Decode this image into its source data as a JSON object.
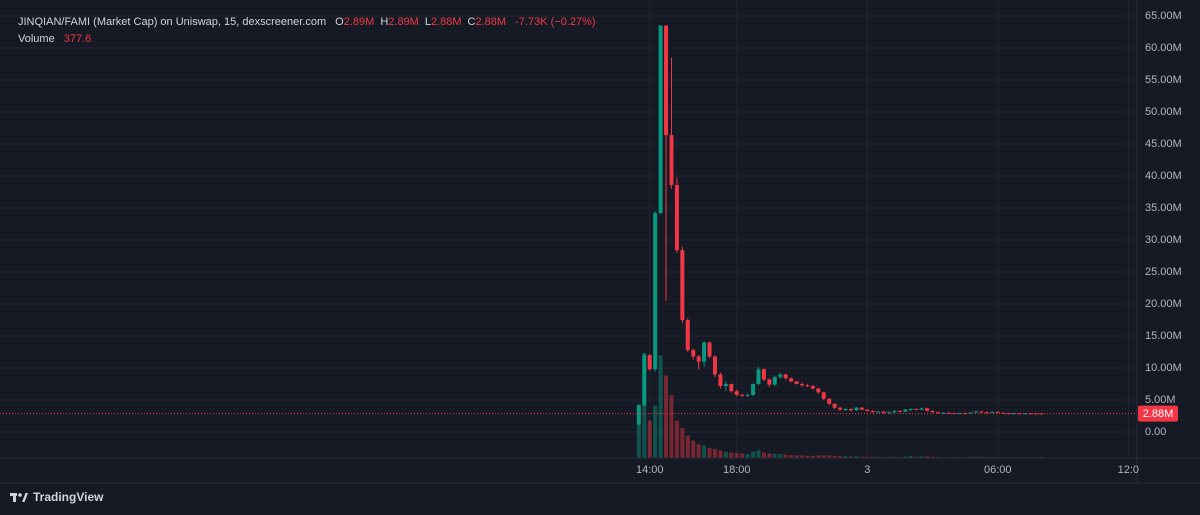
{
  "chart_data": {
    "type": "candlestick",
    "title": "JINQIAN/FAMI (Market Cap) on Uniswap, 15, dexscreener.com",
    "legend": [
      {
        "key": "O",
        "value": "2.89M"
      },
      {
        "key": "H",
        "value": "2.89M"
      },
      {
        "key": "L",
        "value": "2.88M"
      },
      {
        "key": "C",
        "value": "2.88M"
      }
    ],
    "change": "-7.73K (−0.27%)",
    "volume_label": "Volume",
    "last_label": "2.88M",
    "branding": "TradingView",
    "up_color": "#089981",
    "down_color": "#f23645",
    "grid": true,
    "x": [
      13.5,
      13.75,
      14,
      14.25,
      14.5,
      14.75,
      15,
      15.25,
      15.5,
      15.75,
      16,
      16.25,
      16.5,
      16.75,
      17,
      17.25,
      17.5,
      17.75,
      18,
      18.25,
      18.5,
      18.75,
      19,
      19.25,
      19.5,
      19.75,
      20,
      20.25,
      20.5,
      20.75,
      21,
      21.25,
      21.5,
      21.75,
      22,
      22.25,
      22.5,
      22.75,
      23,
      23.25,
      23.5,
      23.75,
      24,
      24.25,
      24.5,
      24.75,
      25,
      25.25,
      25.5,
      25.75,
      26,
      26.25,
      26.5,
      26.75,
      27,
      27.25,
      27.5,
      27.75,
      28,
      28.25,
      28.5,
      28.75,
      29,
      29.25,
      29.5,
      29.75,
      30,
      30.25,
      30.5,
      30.75,
      31,
      31.25,
      31.5,
      31.75,
      32
    ],
    "open": [
      1.2,
      4.2,
      12.0,
      9.8,
      34.2,
      63.5,
      46.4,
      38.6,
      28.4,
      17.5,
      12.8,
      11.8,
      11.0,
      14.0,
      11.8,
      9.0,
      7.2,
      7.5,
      6.4,
      5.8,
      5.7,
      5.8,
      7.5,
      9.8,
      8.2,
      7.4,
      8.6,
      9.0,
      8.4,
      7.9,
      7.5,
      7.3,
      7.2,
      6.8,
      6.2,
      5.2,
      4.4,
      3.8,
      3.5,
      3.6,
      3.4,
      3.8,
      3.5,
      3.3,
      3.1,
      3.2,
      3.0,
      3.1,
      3.3,
      3.2,
      3.5,
      3.6,
      3.5,
      3.7,
      3.3,
      3.1,
      3.0,
      3.0,
      2.95,
      2.9,
      2.95,
      2.9,
      3.05,
      3.2,
      3.1,
      3.0,
      3.15,
      3.0,
      2.95,
      2.92,
      2.93,
      2.9,
      2.91,
      2.9,
      2.89
    ],
    "high": [
      4.3,
      12.3,
      12.2,
      34.5,
      63.6,
      63.6,
      58.5,
      39.8,
      29.0,
      17.8,
      13.0,
      12.0,
      14.2,
      14.1,
      12.0,
      9.3,
      7.9,
      7.6,
      6.6,
      6.0,
      6.0,
      7.6,
      10.2,
      9.9,
      8.4,
      8.8,
      9.2,
      9.1,
      8.5,
      8.0,
      7.7,
      7.5,
      7.3,
      6.9,
      6.3,
      5.3,
      4.5,
      3.9,
      3.7,
      3.7,
      3.9,
      3.9,
      3.6,
      3.4,
      3.3,
      3.3,
      3.2,
      3.4,
      3.4,
      3.6,
      3.7,
      3.7,
      3.8,
      3.8,
      3.4,
      3.2,
      3.1,
      3.1,
      3.0,
      3.0,
      3.0,
      3.1,
      3.3,
      3.3,
      3.2,
      3.2,
      3.2,
      3.05,
      3.0,
      3.0,
      2.98,
      2.95,
      2.95,
      2.92,
      2.89
    ],
    "low": [
      1.0,
      4.0,
      9.6,
      9.5,
      34.0,
      20.5,
      38.0,
      28.0,
      17.0,
      12.5,
      11.3,
      9.8,
      10.2,
      11.5,
      8.6,
      6.8,
      6.4,
      6.2,
      5.6,
      5.5,
      5.5,
      5.6,
      7.3,
      8.0,
      7.0,
      7.2,
      8.3,
      8.2,
      7.8,
      7.4,
      7.1,
      7.0,
      6.6,
      6.0,
      5.0,
      4.2,
      3.6,
      3.3,
      3.3,
      3.2,
      3.3,
      3.4,
      3.2,
      3.0,
      3.0,
      2.9,
      2.9,
      3.0,
      3.1,
      3.1,
      3.3,
      3.4,
      3.4,
      3.2,
      3.0,
      2.9,
      2.9,
      2.9,
      2.85,
      2.85,
      2.85,
      2.85,
      3.0,
      3.0,
      2.9,
      2.95,
      2.95,
      2.9,
      2.9,
      2.88,
      2.88,
      2.88,
      2.88,
      2.88,
      2.88
    ],
    "close": [
      4.2,
      12.0,
      9.8,
      34.2,
      63.5,
      46.4,
      38.6,
      28.4,
      17.5,
      12.8,
      11.8,
      11.0,
      14.0,
      11.8,
      9.0,
      7.2,
      7.5,
      6.4,
      5.8,
      5.7,
      5.8,
      7.5,
      9.8,
      8.2,
      7.4,
      8.6,
      9.0,
      8.4,
      7.9,
      7.5,
      7.3,
      7.2,
      6.8,
      6.2,
      5.2,
      4.4,
      3.8,
      3.5,
      3.6,
      3.4,
      3.8,
      3.5,
      3.3,
      3.1,
      3.2,
      3.0,
      3.1,
      3.3,
      3.2,
      3.5,
      3.6,
      3.5,
      3.7,
      3.3,
      3.1,
      3.0,
      3.0,
      2.95,
      2.9,
      2.95,
      2.9,
      3.05,
      3.2,
      3.1,
      3.0,
      3.15,
      3.0,
      2.95,
      2.92,
      2.93,
      2.9,
      2.91,
      2.9,
      2.89,
      2.88
    ],
    "volume": [
      14000,
      42000,
      15000,
      21000,
      41000,
      33000,
      25000,
      15000,
      12000,
      9000,
      7000,
      5500,
      5000,
      4000,
      3500,
      3000,
      2500,
      2200,
      2000,
      1800,
      1600,
      2500,
      3000,
      2200,
      1800,
      1700,
      1600,
      1400,
      1200,
      1100,
      1000,
      900,
      900,
      1000,
      1100,
      1000,
      900,
      800,
      700,
      600,
      700,
      500,
      500,
      500,
      400,
      400,
      400,
      500,
      400,
      600,
      800,
      500,
      600,
      700,
      500,
      400,
      300,
      300,
      300,
      300,
      300,
      400,
      500,
      400,
      350,
      350,
      300,
      300,
      300,
      300,
      300,
      300,
      300,
      300,
      377.6
    ],
    "xlim": [
      -15.5,
      36.4
    ],
    "xticks": [
      {
        "value": 14,
        "label": "14:00"
      },
      {
        "value": 18,
        "label": "18:00"
      },
      {
        "value": 24,
        "label": "3"
      },
      {
        "value": 30,
        "label": "06:00"
      },
      {
        "value": 36,
        "label": "12:0"
      }
    ],
    "ylim": [
      -4.06,
      66.25
    ],
    "yticks": [
      {
        "value": 0,
        "label": "0.00"
      },
      {
        "value": 5,
        "label": "5.00M"
      },
      {
        "value": 10,
        "label": "10.00M"
      },
      {
        "value": 15,
        "label": "15.00M"
      },
      {
        "value": 20,
        "label": "20.00M"
      },
      {
        "value": 25,
        "label": "25.00M"
      },
      {
        "value": 30,
        "label": "30.00M"
      },
      {
        "value": 35,
        "label": "35.00M"
      },
      {
        "value": 40,
        "label": "40.00M"
      },
      {
        "value": 45,
        "label": "45.00M"
      },
      {
        "value": 50,
        "label": "50.00M"
      },
      {
        "value": 55,
        "label": "55.00M"
      },
      {
        "value": 60,
        "label": "60.00M"
      },
      {
        "value": 65,
        "label": "65.00M"
      }
    ]
  }
}
